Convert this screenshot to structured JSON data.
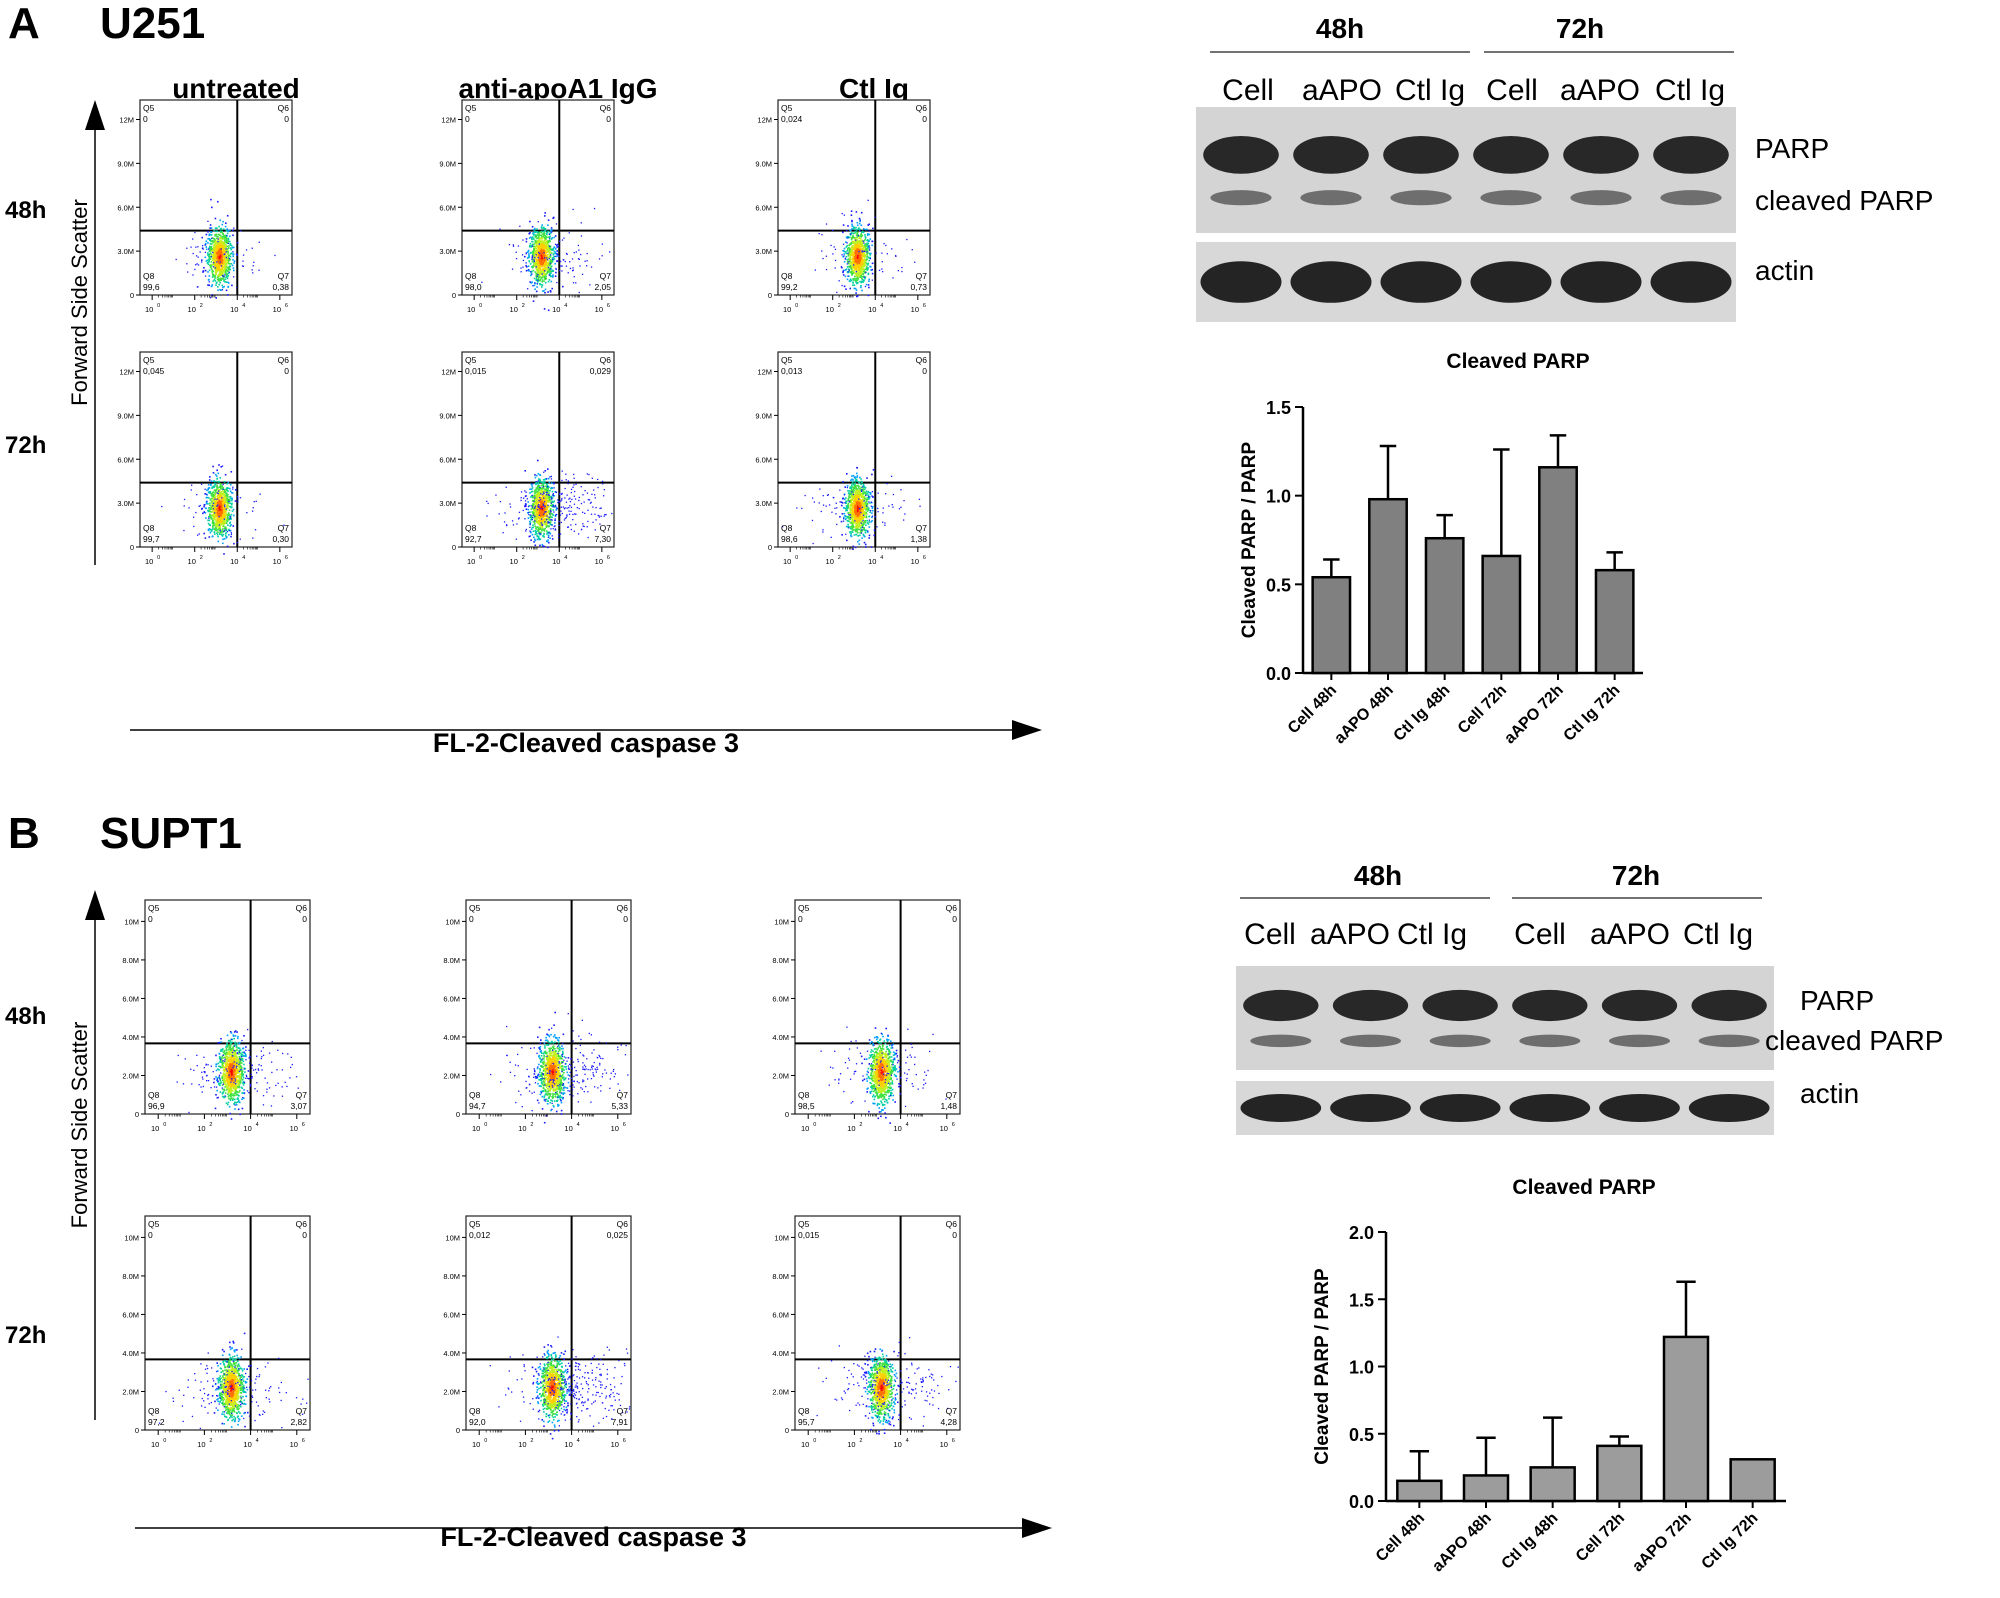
{
  "panels": [
    {
      "letter": "A",
      "cell_line": "U251",
      "flow": {
        "columns": [
          "untreated",
          "anti-apoA1 IgG",
          "Ctl Ig"
        ],
        "rows": [
          "48h",
          "72h"
        ],
        "y_axis_label": "Forward Side Scatter",
        "x_axis_label": "FL-2-Cleaved caspase 3",
        "y_ticks": [
          "12M",
          "9.0M",
          "6.0M",
          "3.0M",
          "0"
        ],
        "x_ticks": [
          "10",
          "10",
          "10",
          "10"
        ],
        "x_tick_exponents": [
          "0",
          "2",
          "4",
          "6"
        ],
        "quadrant_names": [
          "Q5",
          "Q6",
          "Q8",
          "Q7"
        ],
        "plots": [
          [
            "0",
            "0",
            "99,6",
            "0,38"
          ],
          [
            "0",
            "0",
            "98,0",
            "2,05"
          ],
          [
            "0,024",
            "0",
            "99,2",
            "0,73"
          ],
          [
            "0,045",
            "0",
            "99,7",
            "0,30"
          ],
          [
            "0,015",
            "0,029",
            "92,7",
            "7,30"
          ],
          [
            "0,013",
            "0",
            "98,6",
            "1,38"
          ]
        ]
      },
      "western": {
        "groups": [
          "48h",
          "72h"
        ],
        "lanes": [
          "Cell",
          "aAPO",
          "Ctl Ig",
          "Cell",
          "aAPO",
          "Ctl Ig"
        ],
        "band_labels": [
          "PARP",
          "cleaved PARP",
          "actin"
        ]
      }
    },
    {
      "letter": "B",
      "cell_line": "SUPT1",
      "flow": {
        "columns": [
          "",
          "",
          ""
        ],
        "rows": [
          "48h",
          "72h"
        ],
        "y_axis_label": "Forward Side Scatter",
        "x_axis_label": "FL-2-Cleaved caspase 3",
        "y_ticks": [
          "10M",
          "8.0M",
          "6.0M",
          "4.0M",
          "2.0M",
          "0"
        ],
        "x_ticks": [
          "10",
          "10",
          "10",
          "10"
        ],
        "x_tick_exponents": [
          "0",
          "2",
          "4",
          "6"
        ],
        "quadrant_names": [
          "Q5",
          "Q6",
          "Q8",
          "Q7"
        ],
        "plots": [
          [
            "0",
            "0",
            "96,9",
            "3,07"
          ],
          [
            "0",
            "0",
            "94,7",
            "5,33"
          ],
          [
            "0",
            "0",
            "98,5",
            "1,48"
          ],
          [
            "0",
            "0",
            "97,2",
            "2,82"
          ],
          [
            "0,012",
            "0,025",
            "92,0",
            "7,91"
          ],
          [
            "0,015",
            "0",
            "95,7",
            "4,28"
          ]
        ]
      },
      "western": {
        "groups": [
          "48h",
          "72h"
        ],
        "lanes": [
          "Cell",
          "aAPO",
          "Ctl Ig",
          "Cell",
          "aAPO",
          "Ctl Ig"
        ],
        "band_labels": [
          "PARP",
          "cleaved PARP",
          "actin"
        ]
      }
    }
  ],
  "chart_data": [
    {
      "type": "bar",
      "title": "Cleaved PARP",
      "ylabel": "Cleaved PARP / PARP",
      "xlabel": "",
      "categories": [
        "Cell 48h",
        "aAPO 48h",
        "Ctl Ig 48h",
        "Cell 72h",
        "aAPO 72h",
        "Ctl Ig 72h"
      ],
      "values": [
        0.54,
        0.98,
        0.76,
        0.66,
        1.16,
        0.58
      ],
      "errors": [
        0.1,
        0.3,
        0.13,
        0.6,
        0.18,
        0.1
      ],
      "ylim": [
        0,
        1.5
      ],
      "yticks": [
        "0.0",
        "0.5",
        "1.0",
        "1.5"
      ],
      "bar_color": "#808080",
      "grid": false
    },
    {
      "type": "bar",
      "title": "Cleaved PARP",
      "ylabel": "Cleaved PARP / PARP",
      "xlabel": "",
      "categories": [
        "Cell 48h",
        "aAPO 48h",
        "Ctl Ig 48h",
        "Cell 72h",
        "aAPO 72h",
        "Ctl Ig 72h"
      ],
      "values": [
        0.15,
        0.19,
        0.25,
        0.41,
        1.22,
        0.31
      ],
      "errors": [
        0.22,
        0.28,
        0.37,
        0.07,
        0.41,
        0.0
      ],
      "ylim": [
        0,
        2.0
      ],
      "yticks": [
        "0.0",
        "0.5",
        "1.0",
        "1.5",
        "2.0"
      ],
      "bar_color": "#9c9c9c",
      "grid": false
    }
  ]
}
